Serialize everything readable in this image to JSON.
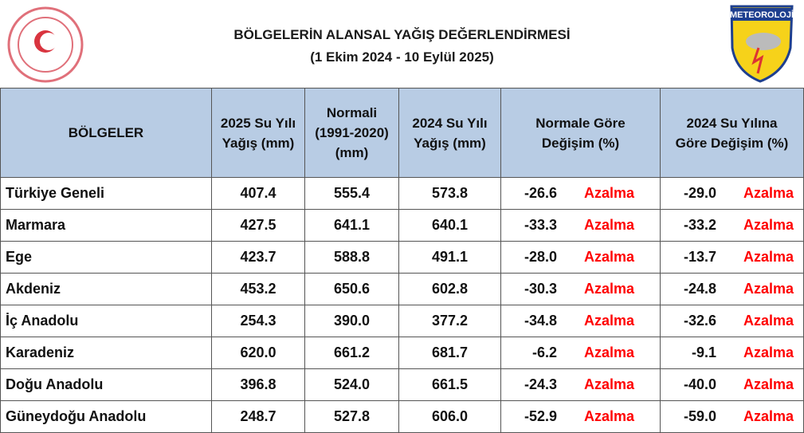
{
  "header": {
    "title": "BÖLGELERİN ALANSAL YAĞIŞ DEĞERLENDİRMESİ",
    "subtitle": "(1 Ekim 2024 - 10 Eylül 2025)",
    "logo_text": "METEOROLOJİ"
  },
  "table": {
    "columns": [
      [
        "BÖLGELER"
      ],
      [
        "2025 Su Yılı",
        "Yağış (mm)"
      ],
      [
        "Normali",
        "(1991-2020)",
        "(mm)"
      ],
      [
        "2024 Su Yılı",
        "Yağış (mm)"
      ],
      [
        "Normale Göre",
        "Değişim (%)"
      ],
      [
        "2024 Su Yılına",
        "Göre Değişim (%)"
      ]
    ],
    "rows": [
      [
        "Türkiye Geneli",
        "407.4",
        "555.4",
        "573.8",
        "-26.6",
        "Azalma",
        "-29.0",
        "Azalma"
      ],
      [
        "Marmara",
        "427.5",
        "641.1",
        "640.1",
        "-33.3",
        "Azalma",
        "-33.2",
        "Azalma"
      ],
      [
        "Ege",
        "423.7",
        "588.8",
        "491.1",
        "-28.0",
        "Azalma",
        "-13.7",
        "Azalma"
      ],
      [
        "Akdeniz",
        "453.2",
        "650.6",
        "602.8",
        "-30.3",
        "Azalma",
        "-24.8",
        "Azalma"
      ],
      [
        "İç Anadolu",
        "254.3",
        "390.0",
        "377.2",
        "-34.8",
        "Azalma",
        "-32.6",
        "Azalma"
      ],
      [
        "Karadeniz",
        "620.0",
        "661.2",
        "681.7",
        "-6.2",
        "Azalma",
        "-9.1",
        "Azalma"
      ],
      [
        "Doğu Anadolu",
        "396.8",
        "524.0",
        "661.5",
        "-24.3",
        "Azalma",
        "-40.0",
        "Azalma"
      ],
      [
        "Güneydoğu Anadolu",
        "248.7",
        "527.8",
        "606.0",
        "-52.9",
        "Azalma",
        "-59.0",
        "Azalma"
      ]
    ]
  }
}
